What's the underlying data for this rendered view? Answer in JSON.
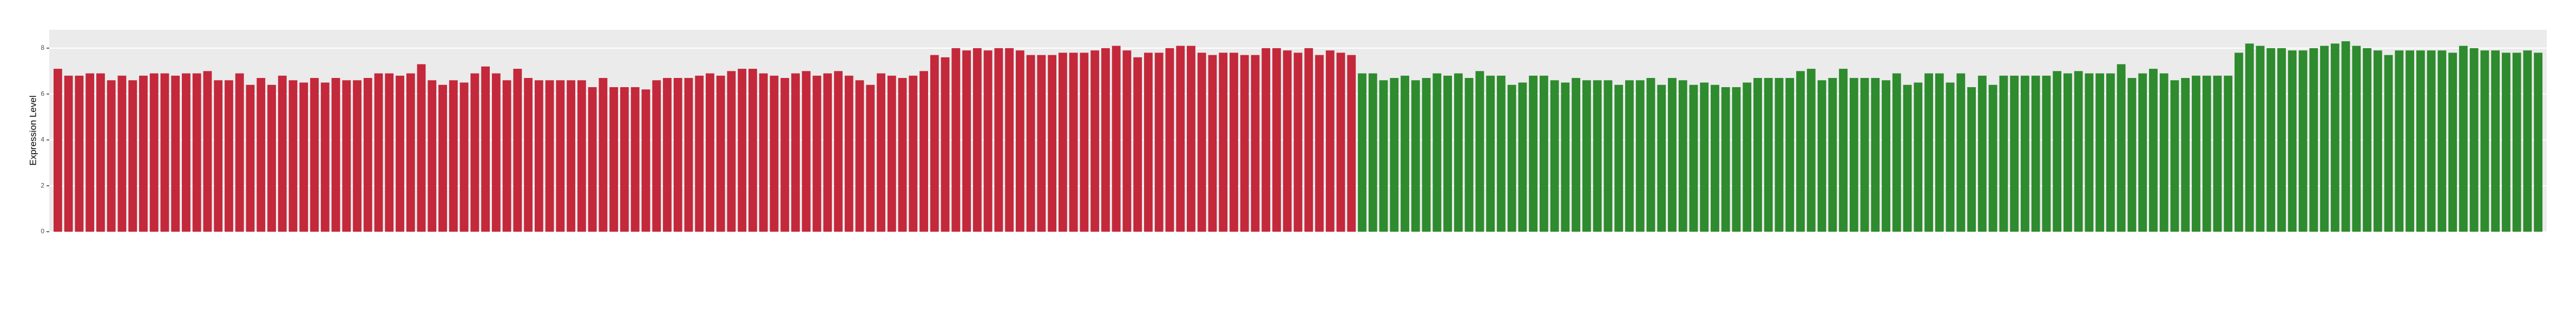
{
  "chart_data": {
    "type": "bar",
    "y_label": "Expression Level",
    "ylim": [
      0,
      8.8
    ],
    "yticks": [
      0,
      2,
      4,
      6,
      8
    ],
    "grid": true,
    "series": [
      {
        "color": "#c4283b",
        "values": [
          7.1,
          6.8,
          6.8,
          6.9,
          6.9,
          6.6,
          6.8,
          6.6,
          6.8,
          6.9,
          6.9,
          6.8,
          6.9,
          6.9,
          7.0,
          6.6,
          6.6,
          6.9,
          6.4,
          6.7,
          6.4,
          6.8,
          6.6,
          6.5,
          6.7,
          6.5,
          6.7,
          6.6,
          6.6,
          6.7,
          6.9,
          6.9,
          6.8,
          6.9,
          7.3,
          6.6,
          6.4,
          6.6,
          6.5,
          6.9,
          7.2,
          6.9,
          6.6,
          7.1,
          6.7,
          6.6,
          6.6,
          6.6,
          6.6,
          6.6,
          6.3,
          6.7,
          6.3,
          6.3,
          6.3,
          6.2,
          6.6,
          6.7,
          6.7,
          6.7,
          6.8,
          6.9,
          6.8,
          7.0,
          7.1,
          7.1,
          6.9,
          6.8,
          6.7,
          6.9,
          7.0,
          6.8,
          6.9,
          7.0,
          6.8,
          6.6,
          6.4,
          6.9,
          6.8,
          6.7,
          6.8,
          7.0,
          7.7,
          7.6,
          8.0,
          7.9,
          8.0,
          7.9,
          8.0,
          8.0,
          7.9,
          7.7,
          7.7,
          7.7,
          7.8,
          7.8,
          7.8,
          7.9,
          8.0,
          8.1,
          7.9,
          7.6,
          7.8,
          7.8,
          8.0,
          8.1,
          8.1,
          7.8,
          7.7,
          7.8,
          7.8,
          7.7,
          7.7,
          8.0,
          8.0,
          7.9,
          7.8,
          8.0,
          7.7,
          7.9,
          7.8,
          7.7
        ]
      },
      {
        "color": "#2e8b2e",
        "values": [
          6.9,
          6.9,
          6.6,
          6.7,
          6.8,
          6.6,
          6.7,
          6.9,
          6.8,
          6.9,
          6.7,
          7.0,
          6.8,
          6.8,
          6.4,
          6.5,
          6.8,
          6.8,
          6.6,
          6.5,
          6.7,
          6.6,
          6.6,
          6.6,
          6.4,
          6.6,
          6.6,
          6.7,
          6.4,
          6.7,
          6.6,
          6.4,
          6.5,
          6.4,
          6.3,
          6.3,
          6.5,
          6.7,
          6.7,
          6.7,
          6.7,
          7.0,
          7.1,
          6.6,
          6.7,
          7.1,
          6.7,
          6.7,
          6.7,
          6.6,
          6.9,
          6.4,
          6.5,
          6.9,
          6.9,
          6.5,
          6.9,
          6.3,
          6.8,
          6.4,
          6.8,
          6.8,
          6.8,
          6.8,
          6.8,
          7.0,
          6.9,
          7.0,
          6.9,
          6.9,
          6.9,
          7.3,
          6.7,
          6.9,
          7.1,
          6.9,
          6.6,
          6.7,
          6.8,
          6.8,
          6.8,
          6.8,
          7.8,
          8.2,
          8.1,
          8.0,
          8.0,
          7.9,
          7.9,
          8.0,
          8.1,
          8.2,
          8.3,
          8.1,
          8.0,
          7.9,
          7.7,
          7.9,
          7.9,
          7.9,
          7.9,
          7.9,
          7.8,
          8.1,
          8.0,
          7.9,
          7.9,
          7.8,
          7.8,
          7.9,
          7.8
        ]
      }
    ]
  }
}
